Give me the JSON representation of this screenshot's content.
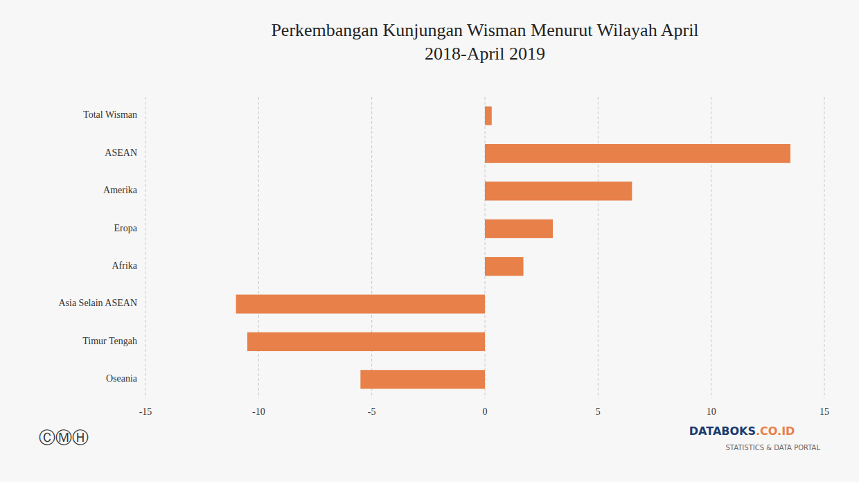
{
  "chart_data": {
    "type": "bar",
    "orientation": "horizontal",
    "title": "Perkembangan Kunjungan Wisman Menurut Wilayah April\n2018-April 2019",
    "categories": [
      "Total Wisman",
      "ASEAN",
      "Amerika",
      "Eropa",
      "Afrika",
      "Asia Selain ASEAN",
      "Timur Tengah",
      "Oseania"
    ],
    "values": [
      0.3,
      13.5,
      6.5,
      3.0,
      1.7,
      -11.0,
      -10.5,
      -5.5
    ],
    "color": "#E8804A",
    "xlim": [
      -15,
      15
    ],
    "xticks": [
      -15,
      -10,
      -5,
      0,
      5,
      10,
      15
    ],
    "grid": true,
    "annotations": [
      {
        "text": "DATABOKS",
        "color": "#1a3a6e"
      },
      {
        "text": ".CO.ID",
        "color": "#E8804A"
      },
      {
        "text": "STATISTICS & DATA PORTAL"
      },
      {
        "text": "ⒸⓂⒽ"
      }
    ]
  }
}
